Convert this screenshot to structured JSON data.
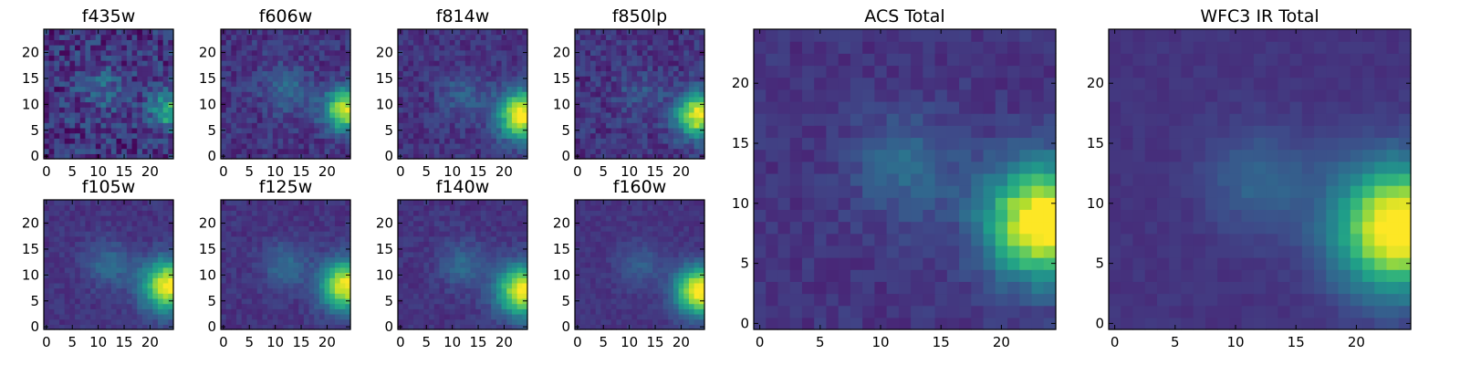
{
  "chart_data": [
    {
      "type": "heatmap",
      "title": "f435w",
      "grid_size": 25,
      "colormap": "viridis",
      "xticks": [
        0,
        5,
        10,
        15,
        20
      ],
      "yticks": [
        0,
        5,
        10,
        15,
        20
      ],
      "source": {
        "x": 23.5,
        "y": 9,
        "sigma": 2.5,
        "amp": 0.5,
        "fuzz_x": 11,
        "fuzz_y": 13,
        "fuzz_amp": 0.2
      },
      "noise": 0.3
    },
    {
      "type": "heatmap",
      "title": "f606w",
      "grid_size": 25,
      "colormap": "viridis",
      "xticks": [
        0,
        5,
        10,
        15,
        20
      ],
      "yticks": [
        0,
        5,
        10,
        15,
        20
      ],
      "source": {
        "x": 23.5,
        "y": 9,
        "sigma": 2.8,
        "amp": 0.8,
        "fuzz_x": 12,
        "fuzz_y": 13,
        "fuzz_amp": 0.2
      },
      "noise": 0.18
    },
    {
      "type": "heatmap",
      "title": "f814w",
      "grid_size": 25,
      "colormap": "viridis",
      "xticks": [
        0,
        5,
        10,
        15,
        20
      ],
      "yticks": [
        0,
        5,
        10,
        15,
        20
      ],
      "source": {
        "x": 23.5,
        "y": 8,
        "sigma": 3.2,
        "amp": 0.9,
        "fuzz_x": 12,
        "fuzz_y": 12,
        "fuzz_amp": 0.15
      },
      "noise": 0.15
    },
    {
      "type": "heatmap",
      "title": "f850lp",
      "grid_size": 25,
      "colormap": "viridis",
      "xticks": [
        0,
        5,
        10,
        15,
        20
      ],
      "yticks": [
        0,
        5,
        10,
        15,
        20
      ],
      "source": {
        "x": 23.5,
        "y": 8,
        "sigma": 3.0,
        "amp": 0.85,
        "fuzz_x": 12,
        "fuzz_y": 12,
        "fuzz_amp": 0.12
      },
      "noise": 0.18
    },
    {
      "type": "heatmap",
      "title": "f105w",
      "grid_size": 25,
      "colormap": "viridis",
      "xticks": [
        0,
        5,
        10,
        15,
        20
      ],
      "yticks": [
        0,
        5,
        10,
        15,
        20
      ],
      "source": {
        "x": 23.5,
        "y": 8,
        "sigma": 3.5,
        "amp": 0.85,
        "fuzz_x": 12,
        "fuzz_y": 12,
        "fuzz_amp": 0.2
      },
      "noise": 0.1
    },
    {
      "type": "heatmap",
      "title": "f125w",
      "grid_size": 25,
      "colormap": "viridis",
      "xticks": [
        0,
        5,
        10,
        15,
        20
      ],
      "yticks": [
        0,
        5,
        10,
        15,
        20
      ],
      "source": {
        "x": 23.5,
        "y": 8,
        "sigma": 3.3,
        "amp": 0.85,
        "fuzz_x": 12,
        "fuzz_y": 12,
        "fuzz_amp": 0.2
      },
      "noise": 0.1
    },
    {
      "type": "heatmap",
      "title": "f140w",
      "grid_size": 25,
      "colormap": "viridis",
      "xticks": [
        0,
        5,
        10,
        15,
        20
      ],
      "yticks": [
        0,
        5,
        10,
        15,
        20
      ],
      "source": {
        "x": 23.5,
        "y": 7,
        "sigma": 3.4,
        "amp": 0.85,
        "fuzz_x": 12,
        "fuzz_y": 12,
        "fuzz_amp": 0.2
      },
      "noise": 0.1
    },
    {
      "type": "heatmap",
      "title": "f160w",
      "grid_size": 25,
      "colormap": "viridis",
      "xticks": [
        0,
        5,
        10,
        15,
        20
      ],
      "yticks": [
        0,
        5,
        10,
        15,
        20
      ],
      "source": {
        "x": 23.5,
        "y": 7,
        "sigma": 3.2,
        "amp": 0.9,
        "fuzz_x": 12,
        "fuzz_y": 12,
        "fuzz_amp": 0.15
      },
      "noise": 0.08
    },
    {
      "type": "heatmap",
      "title": "ACS Total",
      "grid_size": 25,
      "colormap": "viridis",
      "xticks": [
        0,
        5,
        10,
        15,
        20
      ],
      "yticks": [
        0,
        5,
        10,
        15,
        20
      ],
      "source": {
        "x": 23.5,
        "y": 8.5,
        "sigma": 3.3,
        "amp": 0.95,
        "fuzz_x": 12,
        "fuzz_y": 13,
        "fuzz_amp": 0.2
      },
      "noise": 0.1
    },
    {
      "type": "heatmap",
      "title": "WFC3 IR Total",
      "grid_size": 25,
      "colormap": "viridis",
      "xticks": [
        0,
        5,
        10,
        15,
        20
      ],
      "yticks": [
        0,
        5,
        10,
        15,
        20
      ],
      "source": {
        "x": 23.5,
        "y": 8,
        "sigma": 3.6,
        "amp": 0.95,
        "fuzz_x": 12,
        "fuzz_y": 12,
        "fuzz_amp": 0.18
      },
      "noise": 0.05
    }
  ]
}
